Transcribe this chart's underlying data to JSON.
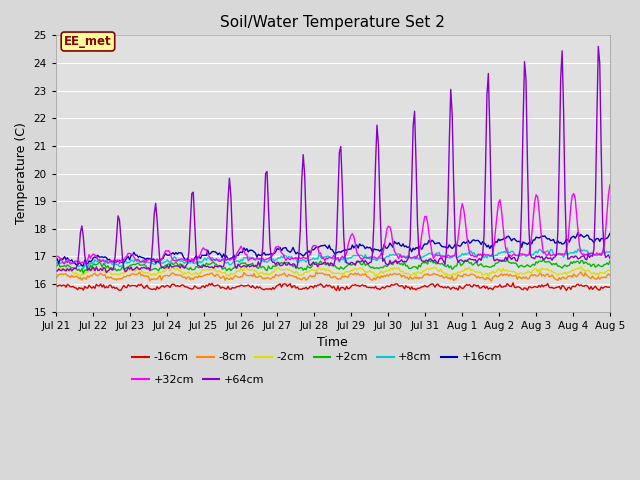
{
  "title": "Soil/Water Temperature Set 2",
  "xlabel": "Time",
  "ylabel": "Temperature (C)",
  "ylim": [
    15.0,
    25.0
  ],
  "yticks": [
    15.0,
    16.0,
    17.0,
    18.0,
    19.0,
    20.0,
    21.0,
    22.0,
    23.0,
    24.0,
    25.0
  ],
  "fig_facecolor": "#d8d8d8",
  "ax_facecolor": "#e0e0e0",
  "grid_color": "#ffffff",
  "series_order": [
    "-16cm",
    "-8cm",
    "-2cm",
    "+2cm",
    "+8cm",
    "+16cm",
    "+32cm",
    "+64cm"
  ],
  "series": {
    "-16cm": {
      "color": "#dd0000",
      "linewidth": 1.0
    },
    "-8cm": {
      "color": "#ff8800",
      "linewidth": 1.0
    },
    "-2cm": {
      "color": "#dddd00",
      "linewidth": 1.0
    },
    "+2cm": {
      "color": "#00bb00",
      "linewidth": 1.0
    },
    "+8cm": {
      "color": "#00cccc",
      "linewidth": 1.0
    },
    "+16cm": {
      "color": "#0000bb",
      "linewidth": 1.0
    },
    "+32cm": {
      "color": "#ff00ff",
      "linewidth": 1.0
    },
    "+64cm": {
      "color": "#8800cc",
      "linewidth": 1.0
    }
  },
  "annotation_text": "EE_met",
  "annotation_color": "#880000",
  "annotation_bg": "#ffff99",
  "xtick_labels": [
    "Jul 21",
    "Jul 22",
    "Jul 23",
    "Jul 24",
    "Jul 25",
    "Jul 26",
    "Jul 27",
    "Jul 28",
    "Jul 29",
    "Jul 30",
    "Jul 31",
    "Aug 1",
    "Aug 2",
    "Aug 3",
    "Aug 4",
    "Aug 5"
  ],
  "legend_row1": [
    "-16cm",
    "-8cm",
    "-2cm",
    "+2cm",
    "+8cm",
    "+16cm"
  ],
  "legend_row2": [
    "+32cm",
    "+64cm"
  ]
}
